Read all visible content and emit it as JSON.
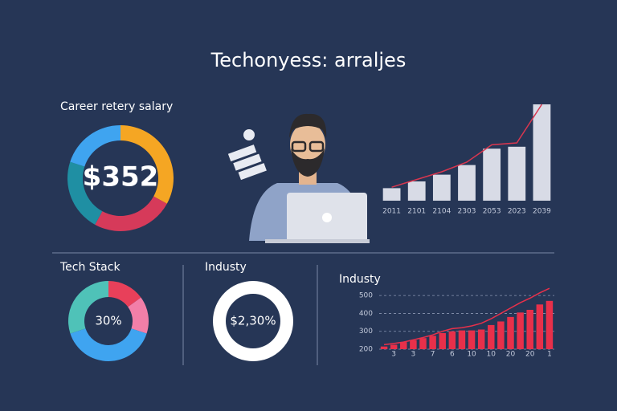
{
  "title": "Techonyess: arraljes",
  "chart_data": [
    {
      "type": "pie",
      "title": "Career retery salary",
      "center_label": "$352",
      "values": [
        33,
        25,
        22,
        20
      ],
      "colors": [
        "#f5a623",
        "#d63a5a",
        "#1f8fa3",
        "#3fa4f0"
      ]
    },
    {
      "type": "bar",
      "categories": [
        "2011",
        "2101",
        "2104",
        "2303",
        "2053",
        "2023",
        "2039"
      ],
      "ylim": [
        0,
        100
      ],
      "series": [
        {
          "type": "bar",
          "color": "#d8dbe6",
          "values": [
            13,
            20,
            27,
            37,
            54,
            56,
            100
          ]
        },
        {
          "type": "line",
          "color": "#d9364f",
          "values": [
            14,
            22,
            30,
            40,
            58,
            60,
            100
          ]
        }
      ]
    },
    {
      "type": "pie",
      "title": "Tech Stack",
      "center_label": "30%",
      "values": [
        15,
        15,
        40,
        30
      ],
      "colors": [
        "#e8405a",
        "#f27fa8",
        "#3fa4f0",
        "#4fc2b8"
      ]
    },
    {
      "type": "pie",
      "title": "Industy",
      "center_label": "$2,30%",
      "values": [
        100
      ],
      "colors": [
        "#ffffff"
      ]
    },
    {
      "type": "bar",
      "title": "Industy",
      "categories": [
        null,
        "3",
        null,
        "3",
        null,
        "7",
        null,
        "6",
        null,
        "10",
        null,
        "10",
        null,
        "20",
        null,
        "20",
        null,
        "1"
      ],
      "ylim": [
        200,
        550
      ],
      "yticks": [
        200,
        300,
        400,
        500
      ],
      "grid": true,
      "series": [
        {
          "type": "bar",
          "color": "#e8304a",
          "values": [
            215,
            225,
            240,
            250,
            262,
            275,
            290,
            300,
            305,
            305,
            310,
            335,
            355,
            380,
            405,
            420,
            450,
            470
          ]
        },
        {
          "type": "line",
          "color": "#e8304a",
          "values": [
            225,
            232,
            240,
            252,
            265,
            280,
            300,
            315,
            320,
            330,
            345,
            370,
            400,
            430,
            460,
            485,
            515,
            540
          ]
        }
      ]
    }
  ]
}
